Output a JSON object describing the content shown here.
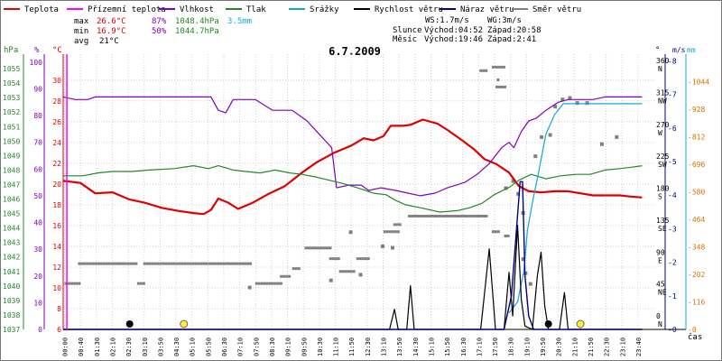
{
  "legend": [
    {
      "label": "Teplota",
      "color": "#e00000",
      "name": "legend-teplota"
    },
    {
      "label": "Přízemní teplota",
      "color": "#ff00ff",
      "name": "legend-prizemni-teplota"
    },
    {
      "label": "Vlhkost",
      "color": "#8000c0",
      "name": "legend-vlhkost"
    },
    {
      "label": "Tlak",
      "color": "#228822",
      "name": "legend-tlak"
    },
    {
      "label": "Srážky",
      "color": "#10a8d8",
      "name": "legend-srazky"
    },
    {
      "label": "Rychlost větru",
      "color": "#000000",
      "name": "legend-rychlost-vetru"
    },
    {
      "label": "Náraz větru",
      "color": "#000080",
      "name": "legend-naraz-vetru"
    },
    {
      "label": "Směr větru",
      "color": "#808080",
      "name": "legend-smer-vetru"
    }
  ],
  "stats": {
    "max_label": "max",
    "max_temp": "26.6°C",
    "max_hum": "87%",
    "max_press": "1048.4hPa",
    "rain": "3.5mm",
    "min_label": "min",
    "min_temp": "16.9°C",
    "min_hum": "50%",
    "min_press": "1044.7hPa",
    "avg_label": "avg",
    "avg_temp": "21°C"
  },
  "wind_info": {
    "ws": "WS:1.7m/s",
    "wg": "WG:3m/s"
  },
  "sun": {
    "label": "Slunce",
    "rise": "Východ:04:52",
    "set": "Západ:20:58"
  },
  "moon": {
    "label": "Měsíc",
    "rise": "Východ:19:46",
    "set": "Západ:2:41"
  },
  "chart_data": {
    "type": "line",
    "title": "6.7.2009",
    "x_label": "čas",
    "x_ticks": [
      "00:00",
      "00:40",
      "01:30",
      "02:10",
      "02:30",
      "03:10",
      "03:50",
      "04:30",
      "05:10",
      "05:50",
      "06:30",
      "07:10",
      "07:50",
      "08:30",
      "09:10",
      "09:50",
      "10:30",
      "11:10",
      "11:50",
      "12:30",
      "13:10",
      "13:50",
      "14:30",
      "15:10",
      "15:50",
      "16:30",
      "17:10",
      "17:50",
      "18:30",
      "19:10",
      "19:50",
      "20:30",
      "21:10",
      "21:50",
      "22:30",
      "23:10",
      "23:40"
    ],
    "axes": {
      "hpa": {
        "unit": "hPa",
        "range": [
          1037,
          1056
        ],
        "ticks": [
          1037,
          1038,
          1039,
          1040,
          1041,
          1042,
          1043,
          1044,
          1045,
          1046,
          1047,
          1048,
          1049,
          1050,
          1051,
          1052,
          1053,
          1054,
          1055
        ]
      },
      "pct": {
        "unit": "%",
        "range": [
          0,
          103
        ],
        "ticks": [
          0,
          10,
          20,
          30,
          40,
          50,
          60,
          70,
          80,
          90,
          100
        ]
      },
      "degc": {
        "unit": "°C",
        "range": [
          6,
          32.5
        ],
        "ticks": [
          6,
          8,
          10,
          12,
          14,
          16,
          18,
          20,
          22,
          24,
          26,
          28,
          30
        ]
      },
      "dir": {
        "unit": "°",
        "ticks": [
          {
            "v": 0,
            "l": "0",
            "s": "N"
          },
          {
            "v": 45,
            "l": "45",
            "s": "NE"
          },
          {
            "v": 90,
            "l": "90",
            "s": "E"
          },
          {
            "v": 135,
            "l": "135",
            "s": "SE"
          },
          {
            "v": 180,
            "l": "180",
            "s": "S"
          },
          {
            "v": 225,
            "l": "225",
            "s": "SW"
          },
          {
            "v": 270,
            "l": "270",
            "s": "W"
          },
          {
            "v": 315,
            "l": "315",
            "s": "NW"
          },
          {
            "v": 360,
            "l": "360",
            "s": "N"
          }
        ]
      },
      "ms": {
        "unit": "m/s",
        "range": [
          0,
          8.2
        ],
        "ticks": [
          0,
          1,
          2,
          3,
          4,
          5,
          6,
          7,
          8
        ]
      },
      "mm": {
        "unit": "mm",
        "ticks": [
          {
            "v": 0,
            "l": "0"
          },
          {
            "v": 1,
            "l": "116"
          },
          {
            "v": 2,
            "l": "202"
          },
          {
            "v": 3,
            "l": "348"
          },
          {
            "v": 4,
            "l": "464"
          },
          {
            "v": 5,
            "l": "580"
          },
          {
            "v": 6,
            "l": "696"
          },
          {
            "v": 7,
            "l": "812"
          },
          {
            "v": 8,
            "l": "928"
          },
          {
            "v": 9,
            "l": "1044"
          }
        ]
      }
    },
    "series": [
      {
        "name": "Teplota",
        "axis": "degc",
        "color": "#e00000",
        "points": [
          [
            0,
            20.3
          ],
          [
            0.7,
            20.1
          ],
          [
            1.3,
            19.1
          ],
          [
            2,
            19.2
          ],
          [
            2.7,
            18.5
          ],
          [
            3.3,
            18.2
          ],
          [
            4,
            17.7
          ],
          [
            4.7,
            17.4
          ],
          [
            5.3,
            17.2
          ],
          [
            5.7,
            17.1
          ],
          [
            6,
            17.5
          ],
          [
            6.3,
            18.6
          ],
          [
            6.7,
            18.2
          ],
          [
            7.1,
            17.6
          ],
          [
            7.7,
            18.2
          ],
          [
            8.3,
            19
          ],
          [
            9,
            19.8
          ],
          [
            9.7,
            21.1
          ],
          [
            10.3,
            22.1
          ],
          [
            11,
            23
          ],
          [
            11.7,
            23.7
          ],
          [
            12.2,
            24.4
          ],
          [
            12.6,
            24.2
          ],
          [
            13,
            24.6
          ],
          [
            13.3,
            25.6
          ],
          [
            13.8,
            25.6
          ],
          [
            14.1,
            25.7
          ],
          [
            14.6,
            26.2
          ],
          [
            15.2,
            25.8
          ],
          [
            15.6,
            25.2
          ],
          [
            16.2,
            24.2
          ],
          [
            16.7,
            23.3
          ],
          [
            17.1,
            22.4
          ],
          [
            17.6,
            21.9
          ],
          [
            18.1,
            21.1
          ],
          [
            18.5,
            19.8
          ],
          [
            18.9,
            19.3
          ],
          [
            19.4,
            19.2
          ],
          [
            20,
            19.3
          ],
          [
            20.5,
            19.3
          ],
          [
            21,
            19.1
          ],
          [
            21.5,
            18.9
          ],
          [
            22,
            18.9
          ],
          [
            22.6,
            18.9
          ],
          [
            23,
            18.8
          ],
          [
            23.5,
            18.7
          ]
        ]
      },
      {
        "name": "Vlhkost",
        "axis": "pct",
        "color": "#8000c0",
        "points": [
          [
            0,
            87
          ],
          [
            0.5,
            86
          ],
          [
            1,
            86
          ],
          [
            1.3,
            87
          ],
          [
            2.6,
            87
          ],
          [
            3.5,
            87
          ],
          [
            4.7,
            87
          ],
          [
            6,
            87
          ],
          [
            6.3,
            82
          ],
          [
            6.6,
            81
          ],
          [
            6.9,
            86
          ],
          [
            7.3,
            86
          ],
          [
            7.8,
            86
          ],
          [
            8.5,
            82
          ],
          [
            9.3,
            82
          ],
          [
            9.9,
            78
          ],
          [
            10.5,
            72
          ],
          [
            10.9,
            68
          ],
          [
            11.1,
            53
          ],
          [
            11.6,
            54
          ],
          [
            12.1,
            54
          ],
          [
            12.4,
            52
          ],
          [
            12.9,
            53
          ],
          [
            13.5,
            52
          ],
          [
            14,
            51
          ],
          [
            14.5,
            50
          ],
          [
            15.1,
            51
          ],
          [
            15.6,
            53
          ],
          [
            16.3,
            55
          ],
          [
            16.8,
            58
          ],
          [
            17.3,
            62
          ],
          [
            17.8,
            68
          ],
          [
            18.1,
            70
          ],
          [
            18.3,
            68
          ],
          [
            18.6,
            74
          ],
          [
            18.9,
            78
          ],
          [
            19.2,
            79
          ],
          [
            19.6,
            82
          ],
          [
            20.1,
            85
          ],
          [
            20.5,
            86
          ],
          [
            21,
            86
          ],
          [
            21.5,
            86
          ],
          [
            22,
            87
          ],
          [
            23.5,
            87
          ]
        ]
      },
      {
        "name": "Tlak",
        "axis": "hpa",
        "color": "#228822",
        "points": [
          [
            0,
            1047.6
          ],
          [
            0.8,
            1047.6
          ],
          [
            1.4,
            1047.8
          ],
          [
            2,
            1047.9
          ],
          [
            2.8,
            1047.9
          ],
          [
            3.5,
            1048
          ],
          [
            4.5,
            1048.1
          ],
          [
            5.3,
            1048.3
          ],
          [
            5.9,
            1048.1
          ],
          [
            6.3,
            1048.3
          ],
          [
            6.9,
            1048
          ],
          [
            7.4,
            1047.9
          ],
          [
            8,
            1047.8
          ],
          [
            8.6,
            1048
          ],
          [
            9.2,
            1047.8
          ],
          [
            9.7,
            1047.7
          ],
          [
            10.3,
            1047.5
          ],
          [
            10.8,
            1047.3
          ],
          [
            11.3,
            1047.1
          ],
          [
            11.9,
            1046.8
          ],
          [
            12.6,
            1046.4
          ],
          [
            13.1,
            1046.3
          ],
          [
            13.5,
            1045.9
          ],
          [
            13.9,
            1045.6
          ],
          [
            14.5,
            1045.4
          ],
          [
            15.3,
            1045.1
          ],
          [
            16,
            1045.2
          ],
          [
            16.5,
            1045.4
          ],
          [
            17,
            1045.7
          ],
          [
            17.5,
            1046.3
          ],
          [
            18.1,
            1046.8
          ],
          [
            18.5,
            1047.3
          ],
          [
            19,
            1047.7
          ],
          [
            19.6,
            1047.4
          ],
          [
            20.2,
            1047.6
          ],
          [
            20.8,
            1047.7
          ],
          [
            21.4,
            1047.7
          ],
          [
            22,
            1048
          ],
          [
            22.6,
            1048.1
          ],
          [
            23.1,
            1048.2
          ],
          [
            23.5,
            1048.3
          ]
        ]
      },
      {
        "name": "Srážky",
        "axis": "mm",
        "color": "#10a8d8",
        "points": [
          [
            18.1,
            0.6
          ],
          [
            18.45,
            1.0
          ],
          [
            18.7,
            2.1
          ],
          [
            18.85,
            3.6
          ],
          [
            19.05,
            4.6
          ],
          [
            19.3,
            5.7
          ],
          [
            19.6,
            7.1
          ],
          [
            19.95,
            7.8
          ],
          [
            20.3,
            8.2
          ],
          [
            23.5,
            8.2
          ]
        ]
      },
      {
        "name": "Rychlost větru",
        "axis": "ms",
        "color": "#000000",
        "points": [
          [
            0,
            0
          ],
          [
            13.25,
            0
          ],
          [
            13.45,
            0.6
          ],
          [
            13.6,
            0
          ],
          [
            13.95,
            0
          ],
          [
            14.1,
            1.3
          ],
          [
            14.25,
            0
          ],
          [
            16.95,
            0
          ],
          [
            17.3,
            2.4
          ],
          [
            17.55,
            0
          ],
          [
            17.9,
            0
          ],
          [
            18.1,
            1.7
          ],
          [
            18.25,
            0.4
          ],
          [
            18.45,
            3.1
          ],
          [
            18.6,
            0.9
          ],
          [
            18.75,
            0.1
          ],
          [
            19.05,
            0
          ],
          [
            19.25,
            1.6
          ],
          [
            19.4,
            2.3
          ],
          [
            19.55,
            0.7
          ],
          [
            19.7,
            0
          ],
          [
            20.15,
            0
          ],
          [
            20.35,
            1.1
          ],
          [
            20.5,
            0
          ],
          [
            23.5,
            0
          ]
        ]
      },
      {
        "name": "Náraz větru",
        "axis": "ms",
        "color": "#000080",
        "points": [
          [
            0,
            0
          ],
          [
            17.9,
            0
          ],
          [
            18.2,
            1.0
          ],
          [
            18.55,
            4.4
          ],
          [
            18.65,
            4.4
          ],
          [
            18.75,
            1.6
          ],
          [
            18.9,
            0.4
          ],
          [
            19.1,
            0
          ],
          [
            23.5,
            0
          ]
        ]
      }
    ],
    "wind_direction": {
      "axis": "dir",
      "color": "#808080",
      "segments": [
        [
          0.05,
          0.6,
          45
        ],
        [
          0.6,
          3.0,
          73
        ],
        [
          3.0,
          3.25,
          45
        ],
        [
          3.25,
          5.8,
          73
        ],
        [
          5.9,
          7.6,
          73
        ],
        [
          7.8,
          8.8,
          45
        ],
        [
          8.8,
          9.2,
          55
        ],
        [
          9.3,
          9.6,
          66
        ],
        [
          9.8,
          10.8,
          95
        ],
        [
          10.8,
          11.2,
          80
        ],
        [
          11.2,
          11.8,
          62
        ],
        [
          11.9,
          12.4,
          80
        ],
        [
          13.0,
          13.6,
          118
        ],
        [
          13.4,
          13.7,
          128
        ],
        [
          14.0,
          15.1,
          140
        ],
        [
          15.1,
          16.8,
          140
        ],
        [
          16.8,
          17.2,
          140
        ],
        [
          17.4,
          17.7,
          118
        ],
        [
          17.9,
          18.1,
          112
        ]
      ],
      "dots": [
        [
          7.5,
          40
        ],
        [
          10.8,
          50
        ],
        [
          11.6,
          118
        ],
        [
          12.0,
          58
        ],
        [
          12.9,
          98
        ],
        [
          13.3,
          96
        ],
        [
          17.9,
          180
        ],
        [
          18.2,
          190
        ],
        [
          18.4,
          172
        ],
        [
          18.6,
          145
        ],
        [
          18.6,
          80
        ],
        [
          18.7,
          60
        ],
        [
          18.9,
          45
        ],
        [
          19.1,
          225
        ],
        [
          19.35,
          252
        ],
        [
          19.7,
          255
        ],
        [
          19.9,
          295
        ],
        [
          20.2,
          305
        ],
        [
          20.5,
          307
        ],
        [
          20.8,
          300
        ],
        [
          21.2,
          300
        ],
        [
          21.8,
          242
        ],
        [
          22.4,
          252
        ]
      ],
      "top_cluster": [
        [
          16.9,
          17.2,
          345
        ],
        [
          17.4,
          17.9,
          350
        ],
        [
          17.6,
          17.7,
          332
        ],
        [
          17.55,
          17.95,
          322
        ]
      ]
    },
    "markers": {
      "moon": [
        {
          "t": 2.7
        },
        {
          "t": 19.7
        }
      ],
      "sun": [
        {
          "t": 4.9
        },
        {
          "t": 21.0
        }
      ]
    }
  }
}
